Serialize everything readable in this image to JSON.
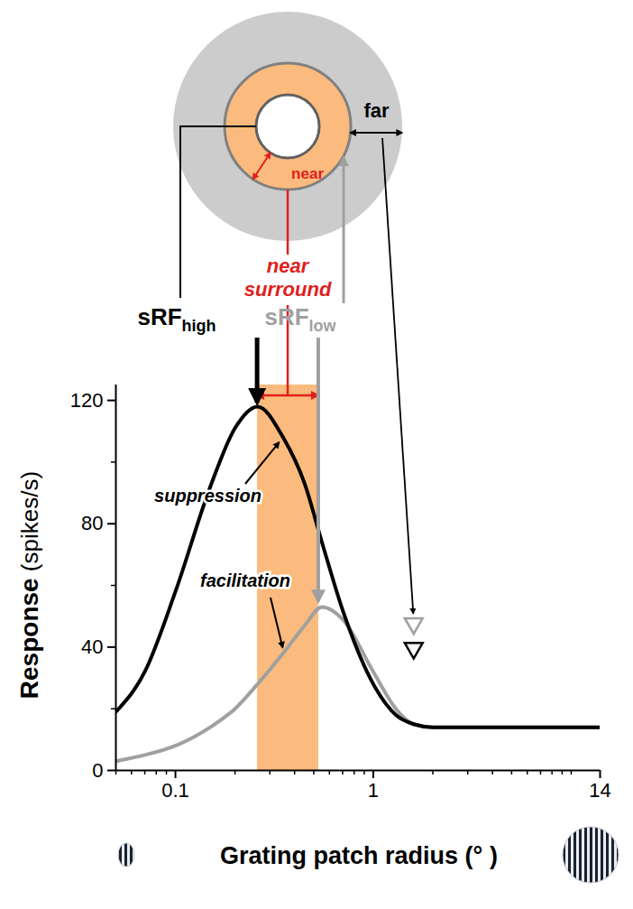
{
  "chart_data": {
    "type": "line",
    "xlabel": "Grating patch radius (° )",
    "ylabel": "Response (spikes/s)",
    "log": "x",
    "grid": false,
    "xlim": [
      0.05,
      14
    ],
    "xticks": [
      0.1,
      1,
      14
    ],
    "ylim": [
      0,
      125
    ],
    "yticks": [
      0,
      40,
      80,
      120
    ],
    "x": [
      0.05,
      0.07,
      0.1,
      0.15,
      0.2,
      0.26,
      0.35,
      0.45,
      0.55,
      0.7,
      1,
      1.3,
      1.6,
      2,
      3,
      14
    ],
    "series": [
      {
        "name": "suppression",
        "color": "#000000",
        "values": [
          19,
          32,
          58,
          92,
          111,
          118,
          108,
          93,
          74,
          52,
          28,
          18,
          15,
          14,
          14,
          14
        ]
      },
      {
        "name": "facilitation",
        "color": "#a0a0a0",
        "values": [
          3,
          5,
          8,
          14,
          20,
          28,
          38,
          47,
          53,
          49,
          32,
          20,
          15,
          14,
          14,
          14
        ]
      }
    ],
    "near_surround": {
      "label": "near surround",
      "ring_label": "near",
      "range": [
        0.26,
        0.53
      ],
      "color": "#fbbb7e"
    },
    "receptive_fields": [
      {
        "label": "sRF",
        "subscript": "high",
        "x": 0.26,
        "y": 118,
        "color": "#000000"
      },
      {
        "label": "sRF",
        "subscript": "low",
        "x": 0.53,
        "y": 53,
        "color": "#a0a0a0"
      }
    ],
    "far_surround": {
      "label": "far",
      "markers": [
        {
          "x": 1.6,
          "y": 47,
          "color": "#a0a0a0"
        },
        {
          "x": 1.6,
          "y": 39,
          "color": "#000000"
        }
      ]
    }
  }
}
